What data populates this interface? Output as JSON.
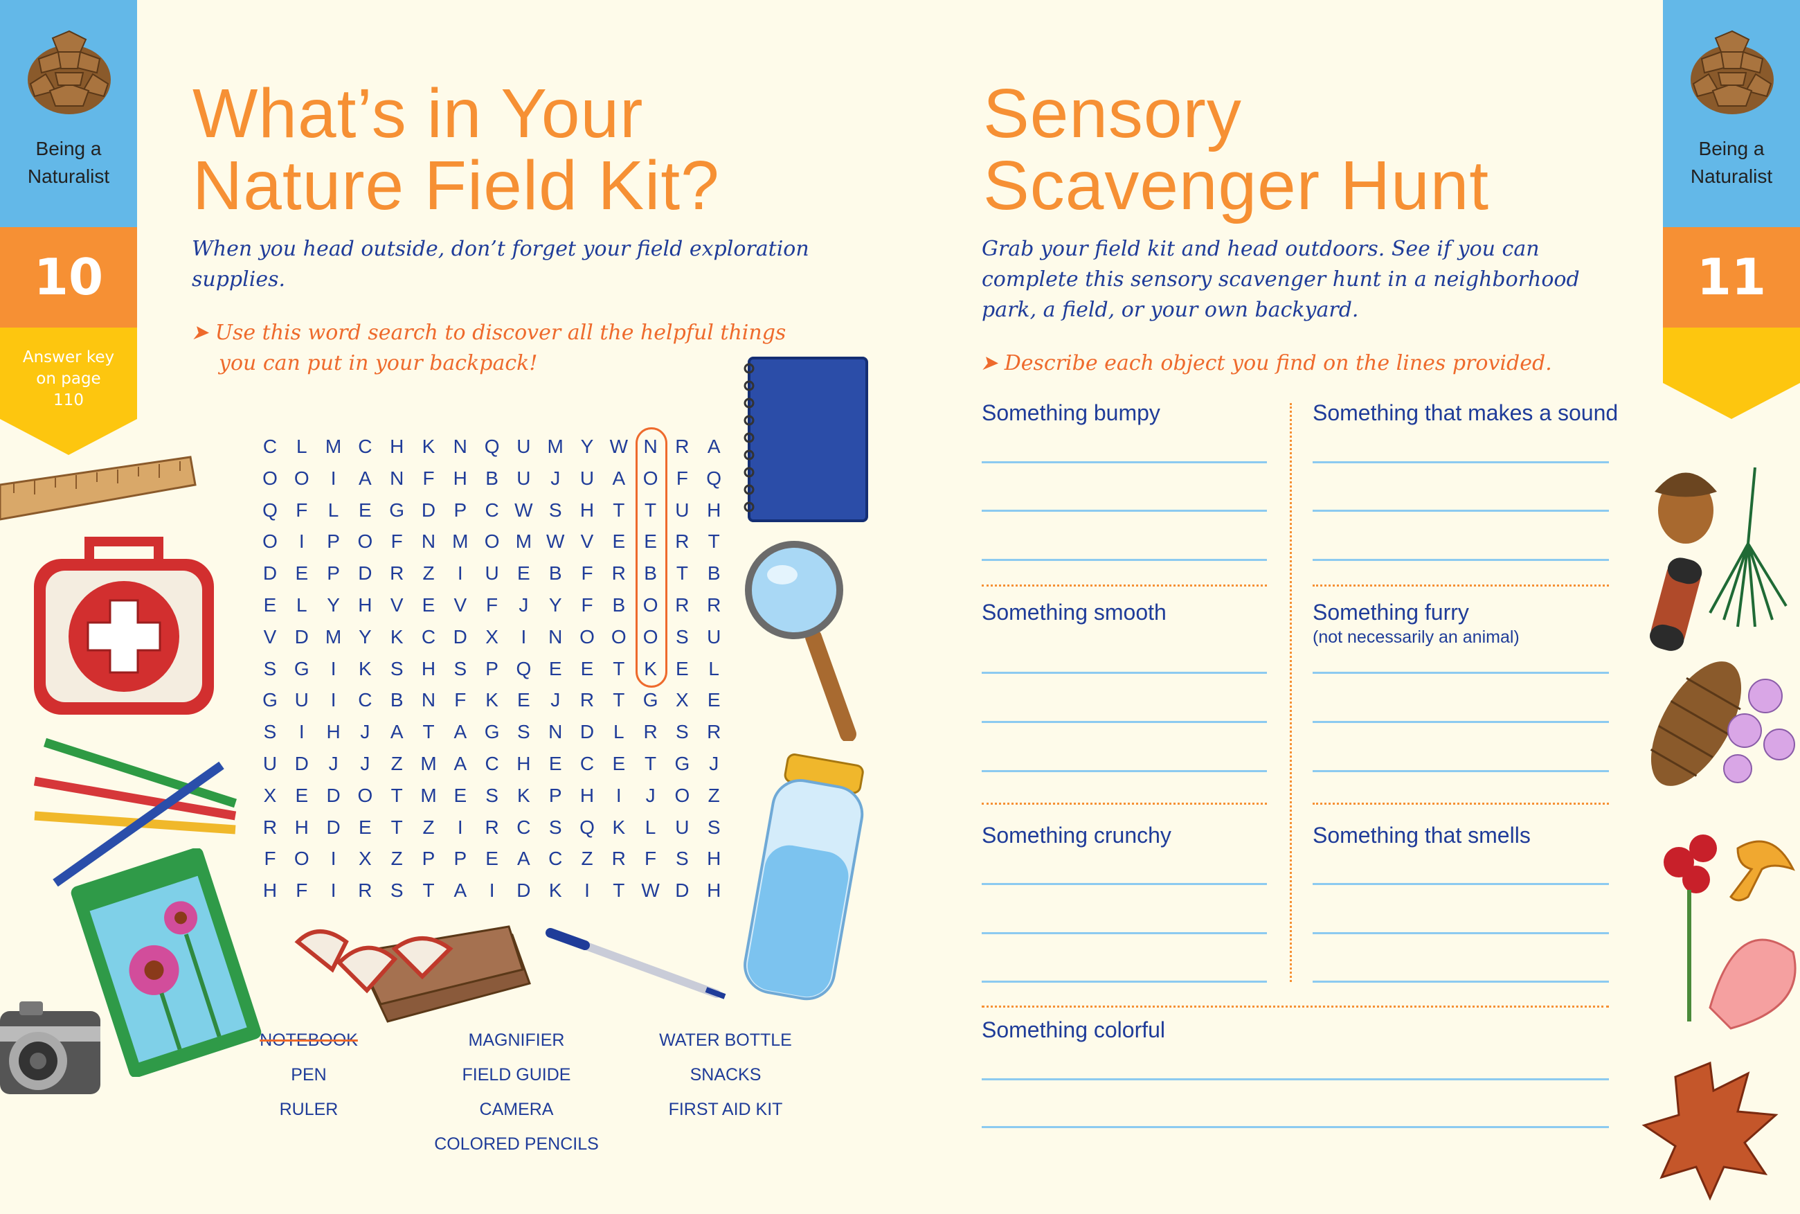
{
  "left_tab": {
    "section": "Being a Naturalist",
    "page": "10",
    "note": "Answer key on page 110"
  },
  "right_tab": {
    "section": "Being a Naturalist",
    "page": "11"
  },
  "left_page": {
    "title_line1": "What’s in Your",
    "title_line2": "Nature Field Kit?",
    "intro_line1": "When you head outside, don’t forget your field exploration",
    "intro_line2": "supplies.",
    "instruction_line1": "Use this word search to discover all the helpful things",
    "instruction_line2": "you can put in your backpack!",
    "word_search": {
      "rows": [
        "CLMCHKNQUMYWNRA",
        "OOIANFHBUJUAOFQ",
        "QFLEGDPCWSHTTUH",
        "OIPOFNMOMWVEERT",
        "DEPDRZIUEBFRBTB",
        "ELYHVEVFJYFBORR",
        "VDMYKCDXINOOOSU",
        "SGIKSHSPQEETKEL",
        "GUICBNFKEJRTGXE",
        "SIHJATAGSNDLRSR",
        "UDJJZMACHECETGJ",
        "XEDOTMESKPHIJOZ",
        "RHDETZIRCSQKLUS",
        "FOIXZPPEACZRFSH",
        "HFIRSTAIDKITWDH"
      ],
      "circled": {
        "word": "NOTEBOOK",
        "column": 12,
        "row_start": 0,
        "row_end": 7
      }
    },
    "word_list": [
      {
        "word": "NOTEBOOK",
        "found": true
      },
      {
        "word": "PEN",
        "found": false
      },
      {
        "word": "RULER",
        "found": false
      },
      {
        "word": "MAGNIFIER",
        "found": false
      },
      {
        "word": "FIELD GUIDE",
        "found": false
      },
      {
        "word": "CAMERA",
        "found": false
      },
      {
        "word": "COLORED PENCILS",
        "found": false
      },
      {
        "word": "WATER BOTTLE",
        "found": false
      },
      {
        "word": "SNACKS",
        "found": false
      },
      {
        "word": "FIRST AID KIT",
        "found": false
      }
    ]
  },
  "right_page": {
    "title_line1": "Sensory",
    "title_line2": "Scavenger Hunt",
    "intro_line1": "Grab your field kit and head outdoors. See if you can",
    "intro_line2": "complete this sensory scavenger hunt in a neighborhood",
    "intro_line3": "park, a field, or your own backyard.",
    "instruction": "Describe each object you find on the lines provided.",
    "prompts": [
      {
        "label": "Something bumpy"
      },
      {
        "label": "Something that makes a sound"
      },
      {
        "label": "Something smooth"
      },
      {
        "label": "Something furry",
        "note": "(not necessarily an animal)"
      },
      {
        "label": "Something crunchy"
      },
      {
        "label": "Something that smells"
      },
      {
        "label": "Something colorful"
      }
    ]
  },
  "colors": {
    "orange": "#f69034",
    "blue_tab": "#63b8e8",
    "yellow_tab": "#fdc60f",
    "text_blue": "#1f3c99",
    "accent_red": "#ee6a2c",
    "line_blue": "#8ccaf0",
    "paper": "#fefbea"
  },
  "icons": [
    "pinecone-icon",
    "arrow-right-icon"
  ]
}
